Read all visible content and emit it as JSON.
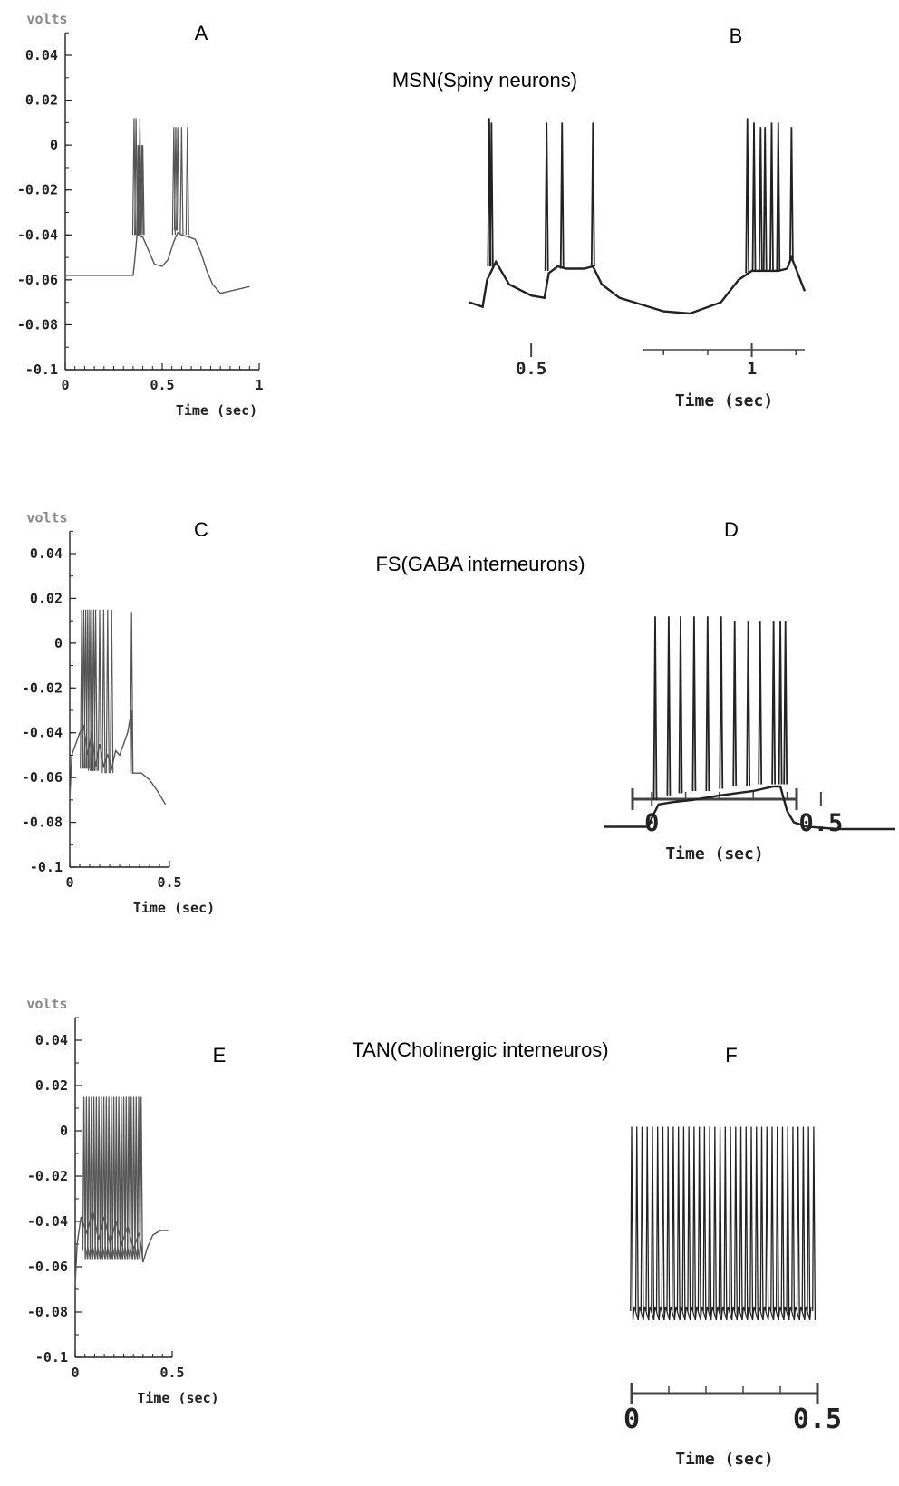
{
  "rows": [
    {
      "title": "MSN(Spiny neurons)"
    },
    {
      "title": "FS(GABA interneurons)"
    },
    {
      "title": "TAN(Cholinergic interneuros)"
    }
  ],
  "chart_data": [
    {
      "panel": "A",
      "type": "line",
      "ylabel": "volts",
      "xlabel": "Time (sec)",
      "xlim": [
        0,
        1
      ],
      "ylim": [
        -0.1,
        0.05
      ],
      "xticks": [
        0,
        0.5,
        1
      ],
      "xtick_labels": [
        "0",
        "0.5",
        "1"
      ],
      "yticks": [
        0.04,
        0.02,
        0,
        -0.02,
        -0.04,
        -0.06,
        -0.08,
        -0.1
      ],
      "ytick_labels": [
        "0.04",
        "0.02",
        "0",
        "-0.02",
        "-0.04",
        "-0.06",
        "-0.08",
        "-0.1"
      ],
      "color": "#555555",
      "trace": {
        "x": [
          0,
          0.35,
          0.36,
          0.37,
          0.4,
          0.42,
          0.44,
          0.46,
          0.5,
          0.53,
          0.56,
          0.58,
          0.6,
          0.64,
          0.67,
          0.7,
          0.73,
          0.76,
          0.8,
          0.95
        ],
        "y": [
          -0.058,
          -0.058,
          -0.05,
          -0.04,
          -0.041,
          -0.045,
          -0.049,
          -0.053,
          -0.054,
          -0.051,
          -0.043,
          -0.039,
          -0.04,
          -0.041,
          -0.042,
          -0.048,
          -0.056,
          -0.062,
          -0.066,
          -0.063
        ]
      },
      "spikes": [
        {
          "t": 0.355,
          "peak": 0.012,
          "base": -0.04
        },
        {
          "t": 0.365,
          "peak": 0.012,
          "base": -0.04
        },
        {
          "t": 0.375,
          "peak": 0.0,
          "base": -0.04
        },
        {
          "t": 0.38,
          "peak": 0.0,
          "base": -0.04
        },
        {
          "t": 0.385,
          "peak": 0.012,
          "base": -0.04
        },
        {
          "t": 0.395,
          "peak": 0.0,
          "base": -0.04
        },
        {
          "t": 0.4,
          "peak": 0.0,
          "base": -0.04
        },
        {
          "t": 0.56,
          "peak": 0.008,
          "base": -0.04
        },
        {
          "t": 0.57,
          "peak": 0.008,
          "base": -0.038
        },
        {
          "t": 0.58,
          "peak": 0.008,
          "base": -0.038
        },
        {
          "t": 0.6,
          "peak": 0.008,
          "base": -0.04
        },
        {
          "t": 0.63,
          "peak": 0.008,
          "base": -0.04
        }
      ]
    },
    {
      "panel": "B",
      "type": "line",
      "xlabel": "Time (sec)",
      "xlim": [
        0.36,
        1.12
      ],
      "xticks": [
        0.5,
        1
      ],
      "xtick_labels": [
        "0.5",
        "1"
      ],
      "color": "#222222",
      "trace": {
        "x": [
          0.36,
          0.39,
          0.4,
          0.42,
          0.45,
          0.5,
          0.53,
          0.54,
          0.56,
          0.58,
          0.62,
          0.64,
          0.66,
          0.7,
          0.75,
          0.8,
          0.86,
          0.93,
          0.97,
          1.0,
          1.04,
          1.06,
          1.08,
          1.09,
          1.12
        ],
        "y": [
          -0.07,
          -0.072,
          -0.06,
          -0.052,
          -0.062,
          -0.067,
          -0.068,
          -0.057,
          -0.054,
          -0.055,
          -0.055,
          -0.054,
          -0.062,
          -0.068,
          -0.071,
          -0.074,
          -0.075,
          -0.07,
          -0.06,
          -0.056,
          -0.056,
          -0.056,
          -0.055,
          -0.05,
          -0.065
        ]
      },
      "spikes": [
        {
          "t": 0.405,
          "peak": 0.012,
          "base": -0.054
        },
        {
          "t": 0.41,
          "peak": 0.01,
          "base": -0.054
        },
        {
          "t": 0.535,
          "peak": 0.01,
          "base": -0.056
        },
        {
          "t": 0.57,
          "peak": 0.01,
          "base": -0.055
        },
        {
          "t": 0.64,
          "peak": 0.01,
          "base": -0.054
        },
        {
          "t": 0.99,
          "peak": 0.012,
          "base": -0.057
        },
        {
          "t": 1.005,
          "peak": 0.01,
          "base": -0.056
        },
        {
          "t": 1.02,
          "peak": 0.008,
          "base": -0.056
        },
        {
          "t": 1.03,
          "peak": 0.008,
          "base": -0.056
        },
        {
          "t": 1.045,
          "peak": 0.01,
          "base": -0.056
        },
        {
          "t": 1.06,
          "peak": 0.01,
          "base": -0.056
        },
        {
          "t": 1.09,
          "peak": 0.008,
          "base": -0.052
        }
      ]
    },
    {
      "panel": "C",
      "type": "line",
      "ylabel": "volts",
      "xlabel": "Time (sec)",
      "xlim": [
        0,
        0.5
      ],
      "ylim": [
        -0.1,
        0.05
      ],
      "xticks": [
        0,
        0.5
      ],
      "xtick_labels": [
        "0",
        "0.5"
      ],
      "yticks": [
        0.04,
        0.02,
        0,
        -0.02,
        -0.04,
        -0.06,
        -0.08,
        -0.1
      ],
      "ytick_labels": [
        "0.04",
        "0.02",
        "0",
        "-0.02",
        "-0.04",
        "-0.06",
        "-0.08",
        "-0.1"
      ],
      "color": "#555555",
      "trace": {
        "x": [
          0,
          0.01,
          0.03,
          0.05,
          0.07,
          0.09,
          0.11,
          0.13,
          0.15,
          0.17,
          0.19,
          0.21,
          0.23,
          0.25,
          0.27,
          0.29,
          0.31,
          0.315,
          0.33,
          0.36,
          0.4,
          0.44,
          0.48
        ],
        "y": [
          -0.07,
          -0.05,
          -0.045,
          -0.04,
          -0.037,
          -0.05,
          -0.04,
          -0.055,
          -0.045,
          -0.055,
          -0.05,
          -0.056,
          -0.048,
          -0.05,
          -0.045,
          -0.04,
          -0.03,
          -0.058,
          -0.058,
          -0.058,
          -0.061,
          -0.066,
          -0.072
        ]
      },
      "spikes": [
        {
          "t": 0.06,
          "peak": 0.015,
          "base": -0.056
        },
        {
          "t": 0.07,
          "peak": 0.015,
          "base": -0.056
        },
        {
          "t": 0.08,
          "peak": 0.015,
          "base": -0.056
        },
        {
          "t": 0.09,
          "peak": 0.015,
          "base": -0.056
        },
        {
          "t": 0.1,
          "peak": 0.015,
          "base": -0.057
        },
        {
          "t": 0.11,
          "peak": 0.015,
          "base": -0.057
        },
        {
          "t": 0.12,
          "peak": 0.015,
          "base": -0.057
        },
        {
          "t": 0.13,
          "peak": 0.015,
          "base": -0.057
        },
        {
          "t": 0.15,
          "peak": 0.015,
          "base": -0.057
        },
        {
          "t": 0.17,
          "peak": 0.015,
          "base": -0.058
        },
        {
          "t": 0.19,
          "peak": 0.015,
          "base": -0.058
        },
        {
          "t": 0.21,
          "peak": 0.015,
          "base": -0.058
        },
        {
          "t": 0.31,
          "peak": 0.014,
          "base": -0.058
        }
      ]
    },
    {
      "panel": "D",
      "type": "line",
      "xlabel": "Time (sec)",
      "xlim": [
        -0.14,
        0.72
      ],
      "xticks": [
        0,
        0.5
      ],
      "xtick_labels": [
        "0",
        "0.5"
      ],
      "color": "#222222",
      "trace": {
        "x": [
          -0.14,
          -0.01,
          0.0,
          0.02,
          0.06,
          0.12,
          0.2,
          0.3,
          0.36,
          0.38,
          0.4,
          0.42,
          0.46,
          0.55,
          0.72
        ],
        "y": [
          -0.082,
          -0.082,
          -0.078,
          -0.072,
          -0.071,
          -0.07,
          -0.068,
          -0.066,
          -0.064,
          -0.064,
          -0.075,
          -0.08,
          -0.082,
          -0.083,
          -0.083
        ]
      },
      "spikes": [
        {
          "t": 0.01,
          "peak": 0.012,
          "base": -0.07
        },
        {
          "t": 0.05,
          "peak": 0.012,
          "base": -0.068
        },
        {
          "t": 0.085,
          "peak": 0.012,
          "base": -0.067
        },
        {
          "t": 0.125,
          "peak": 0.012,
          "base": -0.066
        },
        {
          "t": 0.165,
          "peak": 0.012,
          "base": -0.066
        },
        {
          "t": 0.205,
          "peak": 0.012,
          "base": -0.065
        },
        {
          "t": 0.245,
          "peak": 0.01,
          "base": -0.064
        },
        {
          "t": 0.285,
          "peak": 0.01,
          "base": -0.064
        },
        {
          "t": 0.32,
          "peak": 0.01,
          "base": -0.063
        },
        {
          "t": 0.36,
          "peak": 0.01,
          "base": -0.063
        },
        {
          "t": 0.38,
          "peak": 0.01,
          "base": -0.063
        },
        {
          "t": 0.395,
          "peak": 0.01,
          "base": -0.063
        }
      ]
    },
    {
      "panel": "E",
      "type": "line",
      "ylabel": "volts",
      "xlabel": "Time (sec)",
      "xlim": [
        0,
        0.5
      ],
      "ylim": [
        -0.1,
        0.05
      ],
      "xticks": [
        0,
        0.5
      ],
      "xtick_labels": [
        "0",
        "0.5"
      ],
      "yticks": [
        0.04,
        0.02,
        0,
        -0.02,
        -0.04,
        -0.06,
        -0.08,
        -0.1
      ],
      "ytick_labels": [
        "0.04",
        "0.02",
        "0",
        "-0.02",
        "-0.04",
        "-0.06",
        "-0.08",
        "-0.1"
      ],
      "color": "#555555",
      "trace": {
        "x": [
          0,
          0.01,
          0.03,
          0.06,
          0.09,
          0.12,
          0.15,
          0.18,
          0.21,
          0.24,
          0.27,
          0.3,
          0.33,
          0.35,
          0.37,
          0.4,
          0.44,
          0.48
        ],
        "y": [
          -0.068,
          -0.05,
          -0.038,
          -0.045,
          -0.035,
          -0.048,
          -0.038,
          -0.05,
          -0.04,
          -0.05,
          -0.042,
          -0.052,
          -0.045,
          -0.058,
          -0.052,
          -0.046,
          -0.044,
          -0.044
        ]
      },
      "spike_train": {
        "start": 0.045,
        "end": 0.34,
        "count": 24,
        "peak": 0.015,
        "base": -0.057
      }
    },
    {
      "panel": "F",
      "type": "line",
      "xlabel": "Time (sec)",
      "xlim": [
        0,
        0.5
      ],
      "xticks": [
        0,
        0.5
      ],
      "xtick_labels": [
        "0",
        "0.5"
      ],
      "color": "#222222",
      "spike_train": {
        "start": 0.0,
        "end": 0.49,
        "count": 36,
        "peak": 0.013,
        "base": -0.072,
        "threshold": -0.066
      }
    }
  ]
}
